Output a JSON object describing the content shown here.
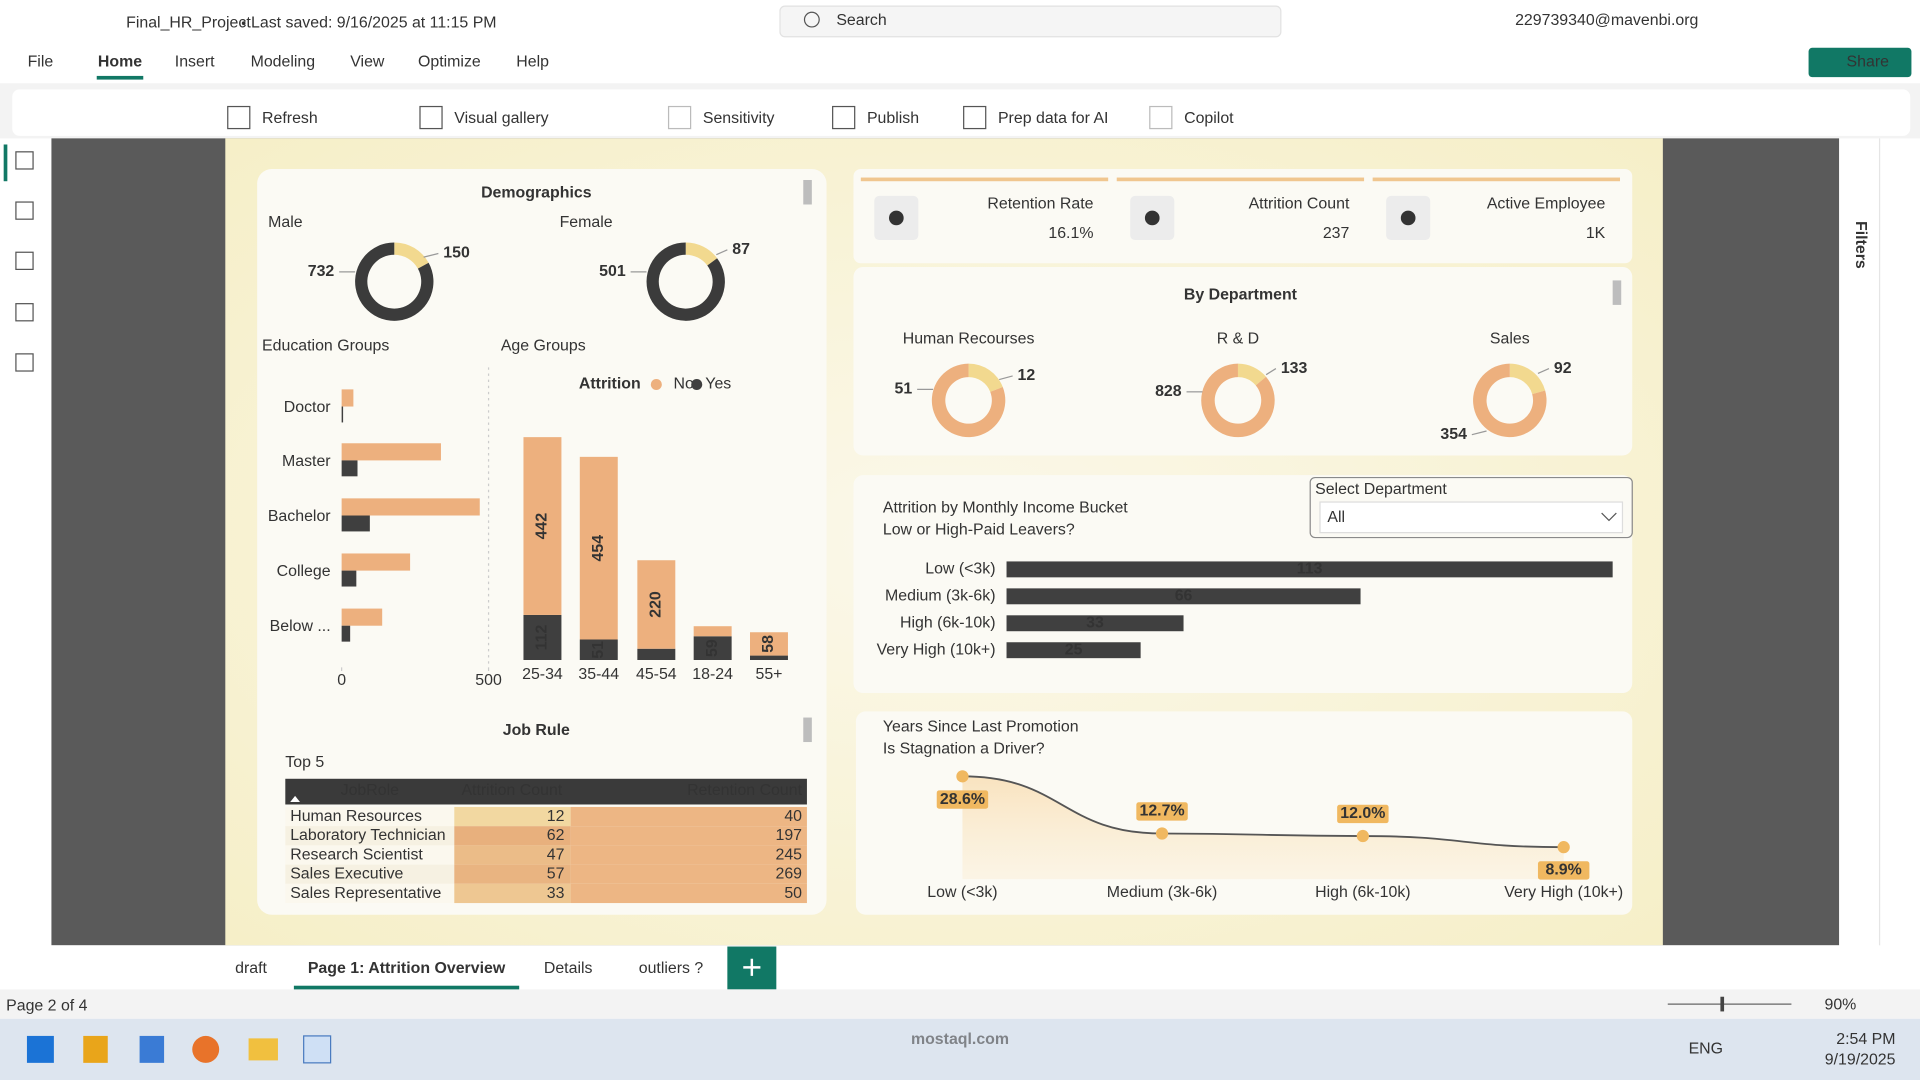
{
  "titlebar": {
    "file": "Final_HR_Project",
    "saved": "Last saved: 9/16/2025 at 11:15 PM",
    "search": "Search",
    "account": "229739340@mavenbi.org"
  },
  "menu": [
    "File",
    "Home",
    "Insert",
    "Modeling",
    "View",
    "Optimize",
    "Help"
  ],
  "share": "Share",
  "ribbon": [
    "Refresh",
    "Visual gallery",
    "Sensitivity",
    "Publish",
    "Prep data for AI",
    "Copilot"
  ],
  "demographics": {
    "title": "Demographics",
    "colors": [
      "#3b3b3b",
      "#f2d98f"
    ],
    "groups": [
      {
        "label": "Male",
        "values": [
          732,
          150
        ]
      },
      {
        "label": "Female",
        "values": [
          501,
          87
        ]
      }
    ]
  },
  "attrition_legend": {
    "title": "Attrition",
    "names": [
      "No",
      "Yes"
    ],
    "colors": [
      "#edb07e",
      "#3f3f3f"
    ]
  },
  "education": {
    "title": "Education Groups",
    "categories": [
      "Doctor",
      "Master",
      "Bachelor",
      "College",
      "Below ..."
    ],
    "no": [
      40,
      338,
      470,
      233,
      138
    ],
    "yes": [
      5,
      54,
      96,
      50,
      29
    ],
    "xlim": [
      0,
      500
    ],
    "xticks": [
      0,
      500
    ]
  },
  "age": {
    "title": "Age Groups",
    "categories": [
      "25-34",
      "35-44",
      "45-54",
      "18-24",
      "55+"
    ],
    "no": [
      442,
      454,
      220,
      25,
      58
    ],
    "yes": [
      112,
      51,
      28,
      59,
      11
    ]
  },
  "job": {
    "title": "Job Rule",
    "subtitle": "Top 5",
    "columns": [
      "JobRole",
      "Attrition Count",
      "Retention Count"
    ],
    "rows": [
      [
        "Human Resources",
        12,
        40
      ],
      [
        "Laboratory Technician",
        62,
        197
      ],
      [
        "Research Scientist",
        47,
        245
      ],
      [
        "Sales Executive",
        57,
        269
      ],
      [
        "Sales Representative",
        33,
        50
      ]
    ]
  },
  "kpis": [
    {
      "label": "Retention Rate",
      "value": "16.1%"
    },
    {
      "label": "Attrition Count",
      "value": "237"
    },
    {
      "label": "Active Employee",
      "value": "1K"
    }
  ],
  "department": {
    "title": "By Department",
    "colors": [
      "#edb07e",
      "#f2d98f"
    ],
    "groups": [
      {
        "label": "Human Recourses",
        "values": [
          51,
          12
        ]
      },
      {
        "label": "R & D",
        "values": [
          828,
          133
        ]
      },
      {
        "label": "Sales",
        "values": [
          354,
          92
        ]
      }
    ]
  },
  "slicer": {
    "label": "Select Department",
    "value": "All"
  },
  "income": {
    "title": "Attrition by Monthly Income Bucket",
    "subtitle": "Low or High-Paid Leavers?",
    "color": "#404040",
    "categories": [
      "Low (<3k)",
      "Medium (3k-6k)",
      "High (6k-10k)",
      "Very High (10k+)"
    ],
    "values": [
      113,
      66,
      33,
      25
    ]
  },
  "promotion": {
    "title": "Years Since Last Promotion",
    "subtitle": "Is Stagnation a Driver?",
    "categories": [
      "Low (<3k)",
      "Medium (3k-6k)",
      "High (6k-10k)",
      "Very High (10k+)"
    ],
    "values": [
      28.6,
      12.7,
      12.0,
      8.9
    ],
    "value_labels": [
      "28.6%",
      "12.7%",
      "12.0%",
      "8.9%"
    ],
    "color": "#f0b860"
  },
  "filters": "Filters",
  "tabs": [
    "draft",
    "Page 1: Attrition Overview",
    "Details",
    "outliers ?"
  ],
  "status": {
    "page": "Page 2 of 4",
    "zoom": "90%"
  },
  "taskbar": {
    "language": "ENG",
    "time": "2:54 PM",
    "date": "9/19/2025"
  },
  "watermark": "mostaql.com"
}
